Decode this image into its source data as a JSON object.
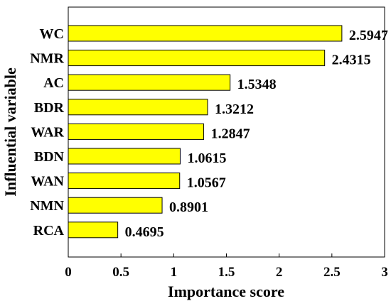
{
  "chart_data": {
    "type": "bar",
    "orientation": "horizontal",
    "categories": [
      "WC",
      "NMR",
      "AC",
      "BDR",
      "WAR",
      "BDN",
      "WAN",
      "NMN",
      "RCA"
    ],
    "values": [
      2.5947,
      2.4315,
      1.5348,
      1.3212,
      1.2847,
      1.0615,
      1.0567,
      0.8901,
      0.4695
    ],
    "value_labels": [
      "2.5947",
      "2.4315",
      "1.5348",
      "1.3212",
      "1.2847",
      "1.0615",
      "1.0567",
      "0.8901",
      "0.4695"
    ],
    "xlabel": "Importance score",
    "ylabel": "Influential variable",
    "xlim": [
      0,
      3.0
    ],
    "xticks": [
      0,
      0.5,
      1,
      1.5,
      2,
      2.5,
      3
    ],
    "xtick_labels": [
      "0",
      "0.5",
      "1",
      "1.5",
      "2",
      "2.5",
      "3"
    ],
    "grid": false,
    "bar_color": "#ffff00",
    "bar_edge_color": "#000000"
  }
}
